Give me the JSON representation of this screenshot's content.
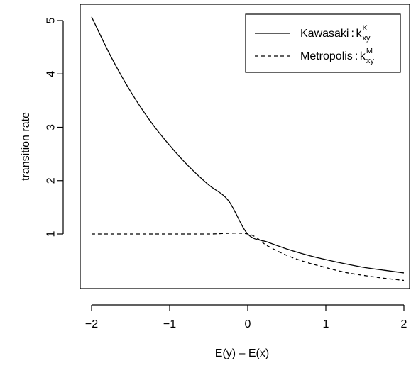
{
  "chart_data": {
    "type": "line",
    "title": "",
    "xlabel": "E(y) – E(x)",
    "ylabel": "transition rate",
    "xlim": [
      -2,
      2
    ],
    "ylim": [
      0,
      5.1
    ],
    "x_ticks": [
      {
        "value": -2,
        "label": "−2"
      },
      {
        "value": -1,
        "label": "−1"
      },
      {
        "value": 0,
        "label": "0"
      },
      {
        "value": 1,
        "label": "1"
      },
      {
        "value": 2,
        "label": "2"
      }
    ],
    "y_ticks": [
      {
        "value": 1,
        "label": "1"
      },
      {
        "value": 2,
        "label": "2"
      },
      {
        "value": 3,
        "label": "3"
      },
      {
        "value": 4,
        "label": "4"
      },
      {
        "value": 5,
        "label": "5"
      }
    ],
    "grid": false,
    "legend_position": "top-right",
    "series": [
      {
        "legend_label": "Kawasaki",
        "symbol_base": "k",
        "symbol_sup": "K",
        "symbol_sub": "xy",
        "line_style": "solid",
        "color": "#000000",
        "x": [
          -2.0,
          -1.75,
          -1.5,
          -1.25,
          -1.0,
          -0.75,
          -0.5,
          -0.25,
          0.0,
          0.25,
          0.5,
          0.75,
          1.0,
          1.25,
          1.5,
          1.75,
          2.0
        ],
        "y": [
          5.07,
          4.32,
          3.67,
          3.12,
          2.66,
          2.26,
          1.92,
          1.63,
          1.0,
          0.85,
          0.72,
          0.61,
          0.52,
          0.44,
          0.37,
          0.32,
          0.27
        ]
      },
      {
        "legend_label": "Metropolis",
        "symbol_base": "k",
        "symbol_sup": "M",
        "symbol_sub": "xy",
        "line_style": "dashed",
        "color": "#000000",
        "x": [
          -2.0,
          -1.5,
          -1.0,
          -0.5,
          0.0,
          0.25,
          0.5,
          0.75,
          1.0,
          1.25,
          1.5,
          1.75,
          2.0
        ],
        "y": [
          1.0,
          1.0,
          1.0,
          1.0,
          1.0,
          0.78,
          0.6,
          0.47,
          0.37,
          0.28,
          0.22,
          0.17,
          0.13
        ]
      }
    ]
  }
}
